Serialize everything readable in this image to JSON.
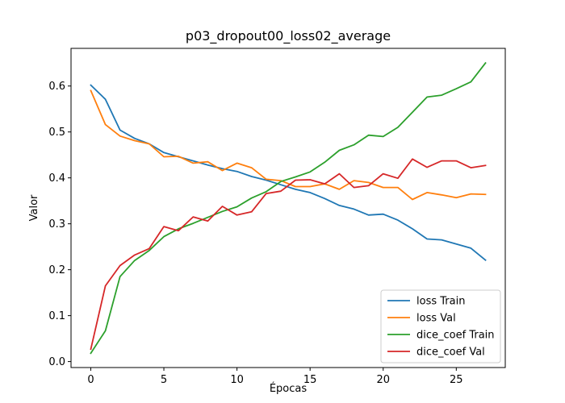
{
  "chart_data": {
    "type": "line",
    "title": "p03_dropout00_loss02_average",
    "xlabel": "Épocas",
    "ylabel": "Valor",
    "xlim": [
      -1.35,
      28.35
    ],
    "ylim": [
      -0.013,
      0.682
    ],
    "xticks": [
      0,
      5,
      10,
      15,
      20,
      25
    ],
    "yticks": [
      0.0,
      0.1,
      0.2,
      0.3,
      0.4,
      0.5,
      0.6
    ],
    "ytick_labels": [
      "0.0",
      "0.1",
      "0.2",
      "0.3",
      "0.4",
      "0.5",
      "0.6"
    ],
    "grid": false,
    "legend_position": "lower-right",
    "x": [
      0,
      1,
      2,
      3,
      4,
      5,
      6,
      7,
      8,
      9,
      10,
      11,
      12,
      13,
      14,
      15,
      16,
      17,
      18,
      19,
      20,
      21,
      22,
      23,
      24,
      25,
      26,
      27
    ],
    "series": [
      {
        "name": "loss Train",
        "color": "#1f77b4",
        "values": [
          0.602,
          0.571,
          0.504,
          0.486,
          0.474,
          0.455,
          0.446,
          0.437,
          0.428,
          0.42,
          0.414,
          0.403,
          0.395,
          0.385,
          0.375,
          0.368,
          0.355,
          0.34,
          0.332,
          0.319,
          0.321,
          0.308,
          0.289,
          0.267,
          0.265,
          0.256,
          0.247,
          0.221
        ]
      },
      {
        "name": "loss Val",
        "color": "#ff7f0e",
        "values": [
          0.59,
          0.516,
          0.491,
          0.481,
          0.474,
          0.446,
          0.447,
          0.432,
          0.435,
          0.416,
          0.432,
          0.422,
          0.397,
          0.394,
          0.381,
          0.381,
          0.387,
          0.375,
          0.394,
          0.39,
          0.379,
          0.379,
          0.353,
          0.368,
          0.363,
          0.357,
          0.365,
          0.364
        ]
      },
      {
        "name": "dice_coef Train",
        "color": "#2ca02c",
        "values": [
          0.018,
          0.067,
          0.185,
          0.22,
          0.242,
          0.272,
          0.289,
          0.301,
          0.314,
          0.327,
          0.337,
          0.356,
          0.37,
          0.392,
          0.402,
          0.413,
          0.434,
          0.46,
          0.472,
          0.493,
          0.49,
          0.51,
          0.543,
          0.576,
          0.58,
          0.594,
          0.609,
          0.65
        ]
      },
      {
        "name": "dice_coef Val",
        "color": "#d62728",
        "values": [
          0.027,
          0.165,
          0.209,
          0.232,
          0.246,
          0.294,
          0.285,
          0.315,
          0.306,
          0.338,
          0.319,
          0.326,
          0.366,
          0.371,
          0.395,
          0.396,
          0.387,
          0.409,
          0.379,
          0.383,
          0.409,
          0.399,
          0.441,
          0.423,
          0.437,
          0.437,
          0.422,
          0.427
        ]
      }
    ]
  }
}
